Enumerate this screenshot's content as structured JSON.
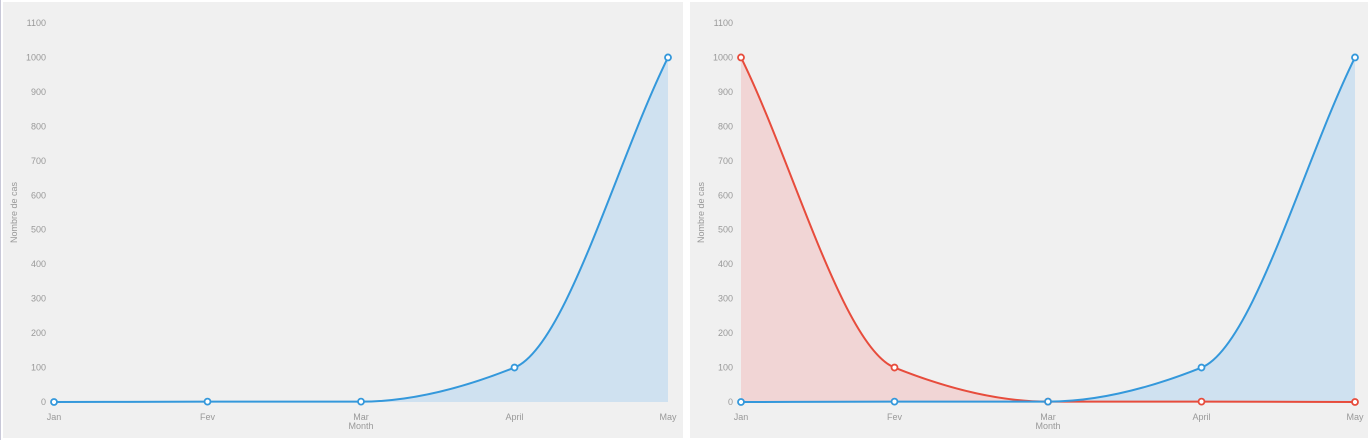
{
  "chart_data": [
    {
      "type": "area",
      "xlabel": "Month",
      "ylabel": "Nombre de cas",
      "categories": [
        "Jan",
        "Fev",
        "Mar",
        "April",
        "May"
      ],
      "ylim": [
        0,
        1100
      ],
      "yticks": [
        0,
        100,
        200,
        300,
        400,
        500,
        600,
        700,
        800,
        900,
        1000,
        1100
      ],
      "grid": false,
      "series": [
        {
          "color": "#3498db",
          "fill": "#cfe1f0",
          "values": [
            0,
            1,
            1,
            100,
            1000
          ]
        }
      ]
    },
    {
      "type": "area",
      "xlabel": "Month",
      "ylabel": "Nombre de cas",
      "categories": [
        "Jan",
        "Fev",
        "Mar",
        "April",
        "May"
      ],
      "ylim": [
        0,
        1100
      ],
      "yticks": [
        0,
        100,
        200,
        300,
        400,
        500,
        600,
        700,
        800,
        900,
        1000,
        1100
      ],
      "grid": false,
      "series": [
        {
          "color": "#e74c3c",
          "fill": "#f1d5d5",
          "values": [
            1000,
            100,
            1,
            1,
            0
          ]
        },
        {
          "color": "#3498db",
          "fill": "#cfe1f0",
          "values": [
            0,
            1,
            1,
            100,
            1000
          ]
        }
      ]
    }
  ]
}
